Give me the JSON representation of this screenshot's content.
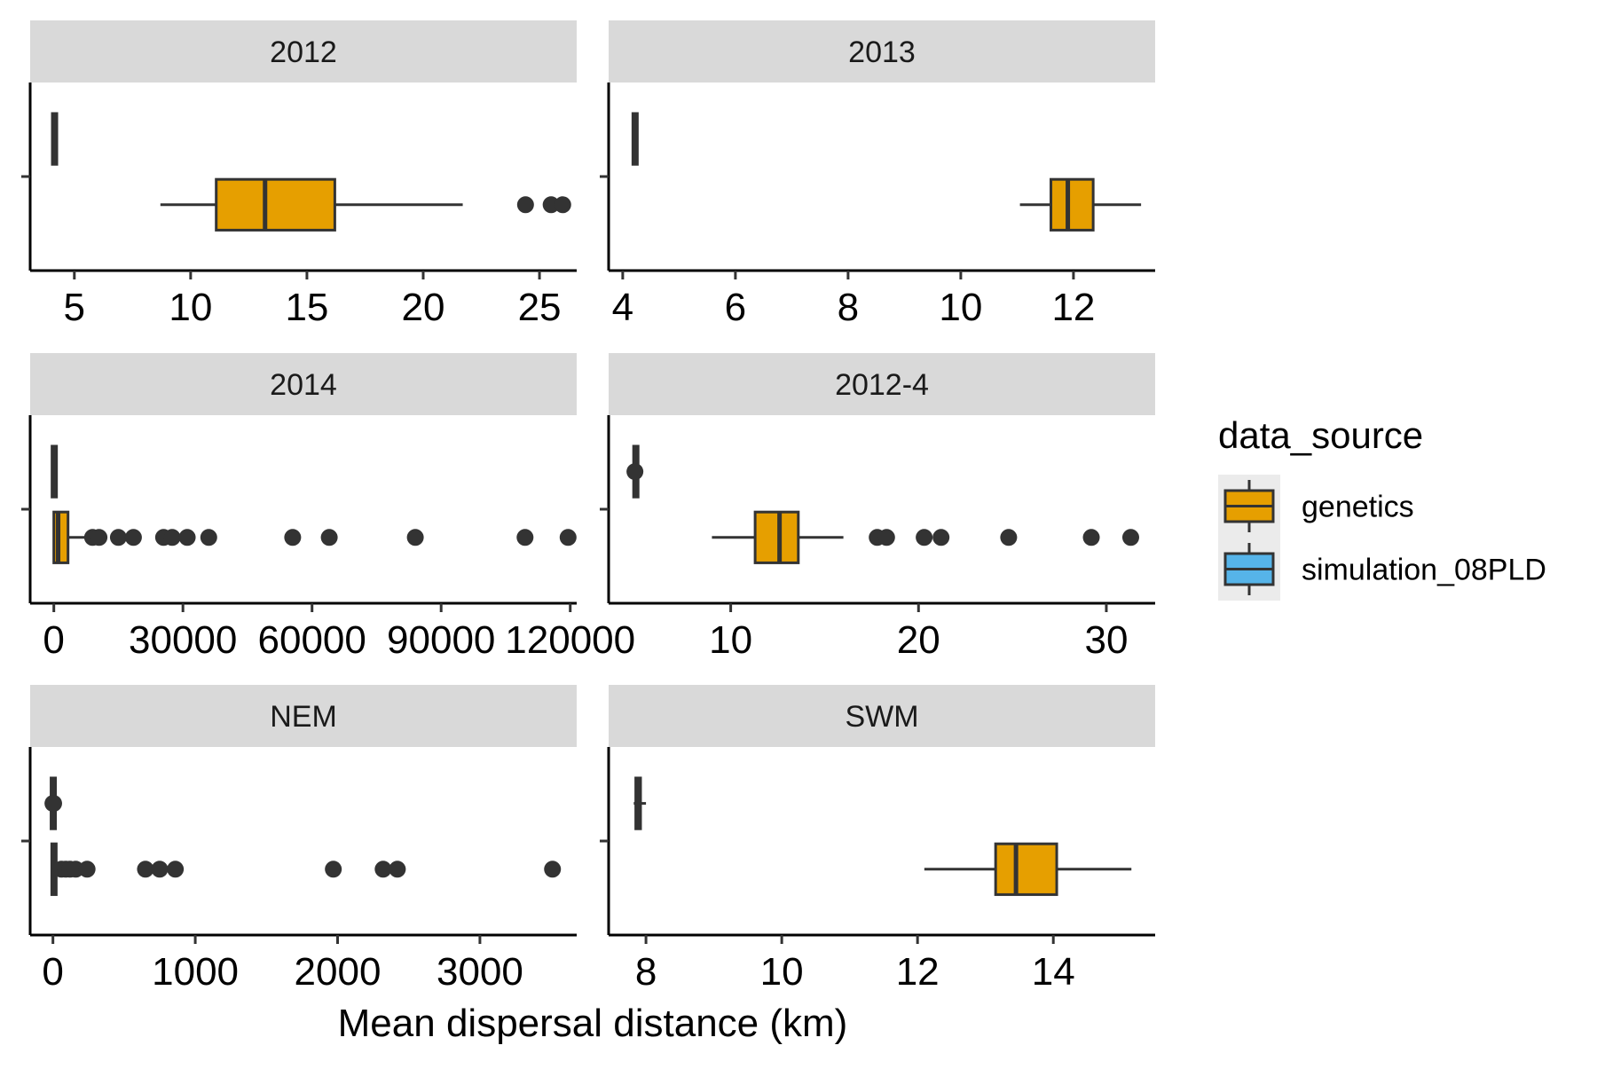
{
  "chart_data": {
    "type": "boxplot",
    "facet_layout": "3 rows x 2 columns, independent x scales",
    "xlabel": "Mean dispersal distance (km)",
    "ylabel": "",
    "colors": {
      "genetics": "#E69F00",
      "simulation_08PLD": "#56B4E9",
      "strip_background": "#d9d9d9",
      "outline": "#333333"
    },
    "legend": {
      "title": "data_source",
      "placement": "right",
      "entries": [
        "genetics",
        "simulation_08PLD"
      ]
    },
    "panels": [
      {
        "strip": "2012",
        "xlim": [
          3.1,
          26.6
        ],
        "ticks": [
          5,
          10,
          15,
          20,
          25
        ],
        "tick_labels": [
          "5",
          "10",
          "15",
          "20",
          "25"
        ],
        "boxes": [
          {
            "series": "simulation_08PLD",
            "position": "upper",
            "q1": 4.1,
            "median": 4.15,
            "q3": 4.2,
            "whisker_low": 4.08,
            "whisker_high": 4.22,
            "outliers": []
          },
          {
            "series": "genetics",
            "position": "lower",
            "q1": 11.1,
            "median": 13.2,
            "q3": 16.2,
            "whisker_low": 8.7,
            "whisker_high": 21.7,
            "outliers": [
              24.4,
              25.5,
              26.0
            ]
          }
        ]
      },
      {
        "strip": "2013",
        "xlim": [
          3.75,
          13.45
        ],
        "ticks": [
          4,
          6,
          8,
          10,
          12
        ],
        "tick_labels": [
          "4",
          "6",
          "8",
          "10",
          "12"
        ],
        "boxes": [
          {
            "series": "simulation_08PLD",
            "position": "upper",
            "q1": 4.19,
            "median": 4.22,
            "q3": 4.25,
            "whisker_low": 4.17,
            "whisker_high": 4.27,
            "outliers": []
          },
          {
            "series": "genetics",
            "position": "lower",
            "q1": 11.6,
            "median": 11.9,
            "q3": 12.35,
            "whisker_low": 11.05,
            "whisker_high": 13.2,
            "outliers": []
          }
        ]
      },
      {
        "strip": "2014",
        "xlim": [
          -5500,
          121500
        ],
        "ticks": [
          0,
          30000,
          60000,
          90000,
          120000
        ],
        "tick_labels": [
          "0",
          "30000",
          "60000",
          "90000",
          "120000"
        ],
        "boxes": [
          {
            "series": "simulation_08PLD",
            "position": "upper",
            "q1": 50,
            "median": 100,
            "q3": 150,
            "whisker_low": 0,
            "whisker_high": 250,
            "outliers": []
          },
          {
            "series": "genetics",
            "position": "lower",
            "q1": 0,
            "median": 1000,
            "q3": 3300,
            "whisker_low": 0,
            "whisker_high": 7500,
            "outliers": [
              9000,
              10500,
              15000,
              18500,
              25500,
              27500,
              31000,
              36000,
              55500,
              64000,
              84000,
              109500,
              119500
            ]
          }
        ]
      },
      {
        "strip": "2012-4",
        "xlim": [
          3.5,
          32.6
        ],
        "ticks": [
          10,
          20,
          30
        ],
        "tick_labels": [
          "10",
          "20",
          "30"
        ],
        "boxes": [
          {
            "series": "simulation_08PLD",
            "position": "upper",
            "q1": 4.85,
            "median": 4.95,
            "q3": 5.05,
            "whisker_low": 4.75,
            "whisker_high": 5.15,
            "outliers": [
              4.9
            ]
          },
          {
            "series": "genetics",
            "position": "lower",
            "q1": 11.3,
            "median": 12.6,
            "q3": 13.6,
            "whisker_low": 9.0,
            "whisker_high": 16.0,
            "outliers": [
              17.8,
              18.3,
              20.3,
              21.2,
              24.8,
              29.2,
              31.3
            ]
          }
        ]
      },
      {
        "strip": "NEM",
        "xlim": [
          -160,
          3680
        ],
        "ticks": [
          0,
          1000,
          2000,
          3000
        ],
        "tick_labels": [
          "0",
          "1000",
          "2000",
          "3000"
        ],
        "boxes": [
          {
            "series": "simulation_08PLD",
            "position": "upper",
            "q1": 0,
            "median": 2,
            "q3": 5,
            "whisker_low": 0,
            "whisker_high": 10,
            "outliers": [
              0,
              5
            ]
          },
          {
            "series": "genetics",
            "position": "lower",
            "q1": 0,
            "median": 5,
            "q3": 15,
            "whisker_low": 0,
            "whisker_high": 40,
            "outliers": [
              60,
              90,
              120,
              160,
              240,
              650,
              750,
              860,
              1970,
              2320,
              2420,
              3510
            ]
          }
        ]
      },
      {
        "strip": "SWM",
        "xlim": [
          7.45,
          15.5
        ],
        "ticks": [
          8,
          10,
          12,
          14
        ],
        "tick_labels": [
          "8",
          "10",
          "12",
          "14"
        ],
        "boxes": [
          {
            "series": "simulation_08PLD",
            "position": "upper",
            "q1": 7.85,
            "median": 7.88,
            "q3": 7.92,
            "whisker_low": 7.82,
            "whisker_high": 8.0,
            "outliers": []
          },
          {
            "series": "genetics",
            "position": "lower",
            "q1": 13.15,
            "median": 13.45,
            "q3": 14.05,
            "whisker_low": 12.1,
            "whisker_high": 15.15,
            "outliers": []
          }
        ]
      }
    ]
  }
}
